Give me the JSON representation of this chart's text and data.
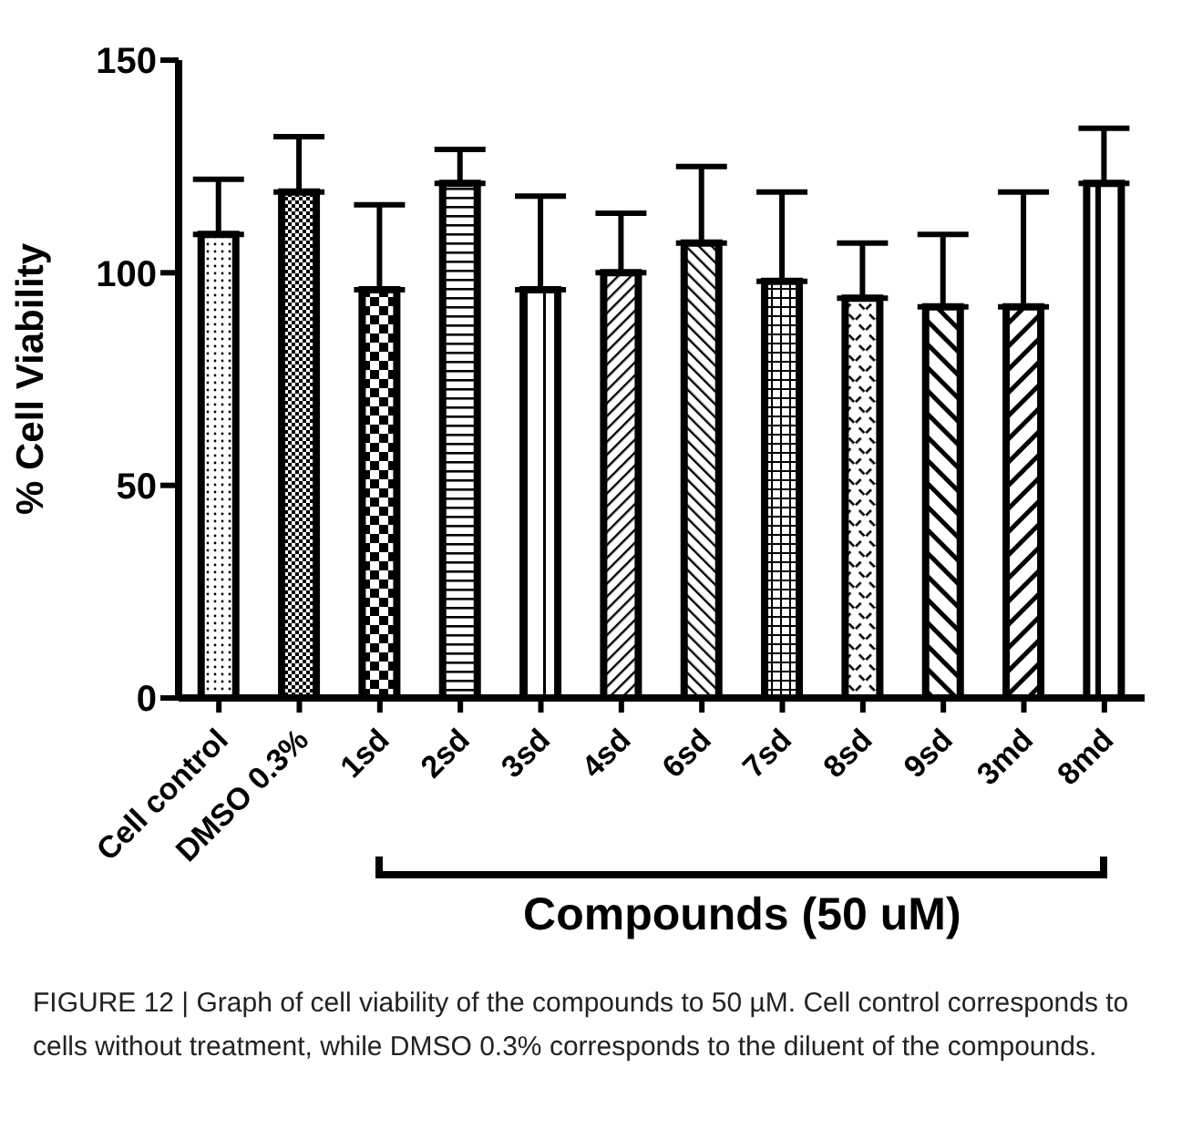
{
  "chart_data": {
    "type": "bar",
    "ylabel": "% Cell Viability",
    "xlabel": "Compounds (50 uM)",
    "categories": [
      "Cell control",
      "DMSO 0.3%",
      "1sd",
      "2sd",
      "3sd",
      "4sd",
      "6sd",
      "7sd",
      "8sd",
      "9sd",
      "3md",
      "8md"
    ],
    "values": [
      109,
      119,
      96,
      121,
      96,
      100,
      107,
      98,
      94,
      92,
      92,
      121
    ],
    "errors": [
      [
        109,
        122
      ],
      [
        119,
        132
      ],
      [
        96,
        116
      ],
      [
        121,
        129
      ],
      [
        96,
        118
      ],
      [
        100,
        114
      ],
      [
        107,
        125
      ],
      [
        98,
        119
      ],
      [
        94,
        107
      ],
      [
        92,
        109
      ],
      [
        92,
        119
      ],
      [
        121,
        134
      ]
    ],
    "colors": [
      "#000000",
      "#000000",
      "#000000",
      "#000000",
      "#000000",
      "#000000",
      "#000000",
      "#000000",
      "#000000",
      "#000000",
      "#000000",
      "#000000"
    ],
    "ylim": [
      0,
      150
    ],
    "yticks": [
      0,
      50,
      100,
      150
    ],
    "grid": false,
    "legend": false,
    "annotations": [
      "FIGURE 12 | Graph of cell viability of the compounds to 50 µM. Cell control corresponds to cells without treatment, while DMSO 0.3% corresponds to the diluent of the compounds."
    ]
  }
}
